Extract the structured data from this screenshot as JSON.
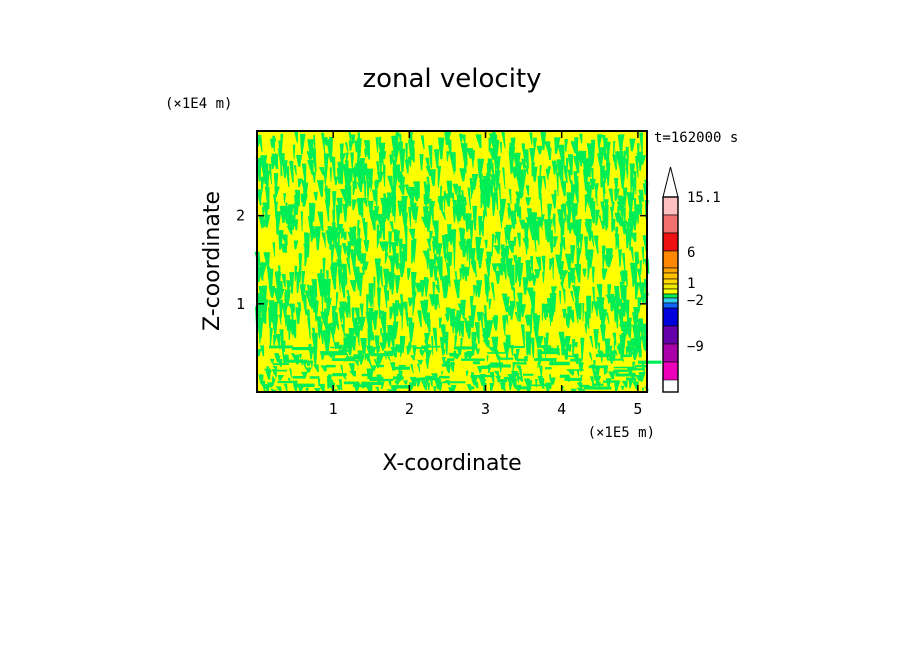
{
  "chart_data": {
    "type": "heatmap",
    "title": "zonal velocity",
    "xlabel": "X-coordinate",
    "ylabel": "Z-coordinate",
    "x_scale_label": "(×1E5 m)",
    "y_scale_label": "(×1E4 m)",
    "time_label": "t=162000 s",
    "xlim": [
      0,
      5.12
    ],
    "ylim": [
      0,
      2.96
    ],
    "x_ticks": [
      1,
      2,
      3,
      4,
      5
    ],
    "y_ticks": [
      1,
      2
    ],
    "dominant_colors": [
      "#ffff00",
      "#00ee55"
    ],
    "colorbar": {
      "levels": [
        {
          "upper": "max",
          "color": "#ffffff"
        },
        {
          "upper": 15.1,
          "color": "#ffc0c0"
        },
        {
          "upper": 12,
          "color": "#f07070"
        },
        {
          "upper": 9,
          "color": "#ee1111"
        },
        {
          "upper": 6,
          "color": "#ff8800"
        },
        {
          "upper": 5,
          "color": "#ffa500"
        },
        {
          "upper": 4,
          "color": "#ffc000"
        },
        {
          "upper": 3,
          "color": "#ffd800"
        },
        {
          "upper": 2,
          "color": "#eeee00"
        },
        {
          "upper": 1,
          "color": "#ffff00"
        },
        {
          "upper": 0,
          "color": "#00ee55"
        },
        {
          "upper": -1,
          "color": "#33ccee"
        },
        {
          "upper": -2,
          "color": "#1166ff"
        },
        {
          "upper": -3,
          "color": "#0000dd"
        },
        {
          "upper": -6,
          "color": "#6600aa"
        },
        {
          "upper": -9,
          "color": "#aa00aa"
        },
        {
          "upper": -12,
          "color": "#ee00bb"
        }
      ],
      "labels": [
        "15.1",
        "6",
        "1",
        "−2",
        "−9"
      ]
    }
  }
}
